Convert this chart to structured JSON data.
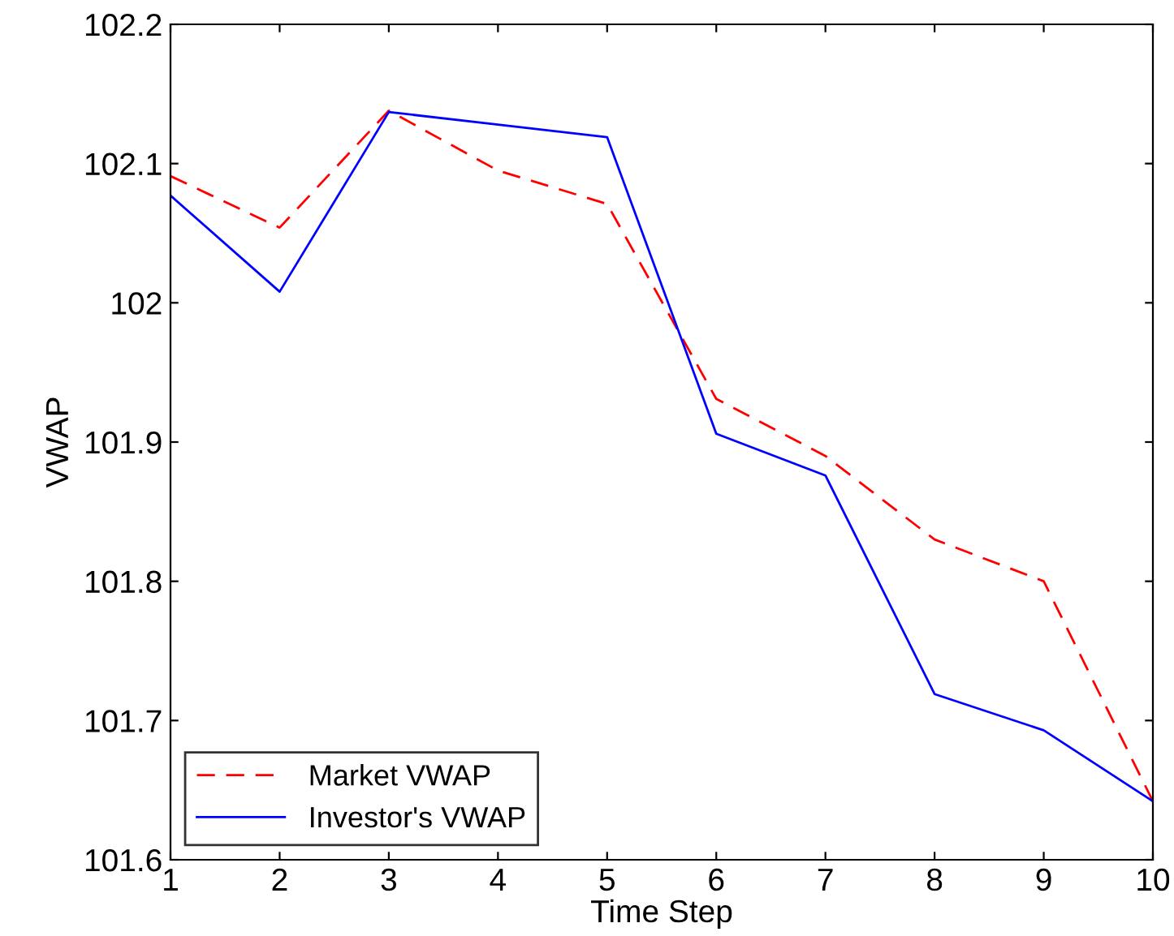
{
  "chart_data": {
    "type": "line",
    "xlabel": "Time Step",
    "ylabel": "VWAP",
    "x": [
      1,
      2,
      3,
      4,
      5,
      6,
      7,
      8,
      9,
      10
    ],
    "series": [
      {
        "name": "Market VWAP",
        "color": "#ff0000",
        "line_style": "dashed",
        "values": [
          102.091,
          102.054,
          102.138,
          102.095,
          102.071,
          101.931,
          101.89,
          101.83,
          101.8,
          101.642
        ]
      },
      {
        "name": "Investor's VWAP",
        "color": "#0000ff",
        "line_style": "solid",
        "values": [
          102.077,
          102.008,
          102.137,
          102.128,
          102.119,
          101.906,
          101.876,
          101.719,
          101.693,
          101.642
        ]
      }
    ],
    "xlim": [
      1,
      10
    ],
    "xticks": [
      1,
      2,
      3,
      4,
      5,
      6,
      7,
      8,
      9,
      10
    ],
    "ylim": [
      101.6,
      102.2
    ],
    "yticks": [
      101.6,
      101.7,
      101.8,
      101.9,
      102,
      102.1,
      102.2
    ],
    "grid": false,
    "legend": "bottom left",
    "marker": "none"
  }
}
